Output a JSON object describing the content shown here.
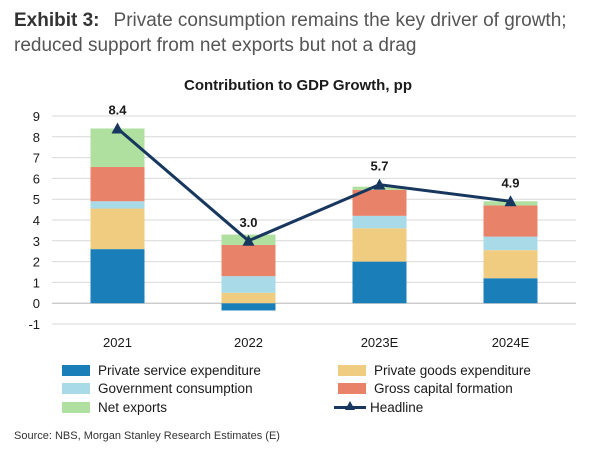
{
  "exhibit": {
    "label": "Exhibit 3:",
    "title": "Private consumption remains the key driver of growth; reduced support from net exports but not a drag"
  },
  "chart_data": {
    "type": "bar",
    "stacked": true,
    "title": "Contribution to GDP Growth, pp",
    "categories": [
      "2021",
      "2022",
      "2023E",
      "2024E"
    ],
    "ylim": [
      -1,
      9
    ],
    "yticks": [
      -1,
      0,
      1,
      2,
      3,
      4,
      5,
      6,
      7,
      8,
      9
    ],
    "grid": true,
    "series": [
      {
        "name": "Private service expenditure",
        "color": "#1a7fb8",
        "values": [
          2.6,
          -0.35,
          2.0,
          1.2
        ]
      },
      {
        "name": "Private goods expenditure",
        "color": "#f0cc80",
        "values": [
          1.95,
          0.5,
          1.6,
          1.35
        ]
      },
      {
        "name": "Government consumption",
        "color": "#a8dae8",
        "values": [
          0.35,
          0.8,
          0.6,
          0.65
        ]
      },
      {
        "name": "Gross capital formation",
        "color": "#e8836a",
        "values": [
          1.65,
          1.5,
          1.25,
          1.5
        ]
      },
      {
        "name": "Net exports",
        "color": "#b0e0a0",
        "values": [
          1.85,
          0.5,
          0.15,
          0.2
        ]
      }
    ],
    "line": {
      "name": "Headline",
      "color": "#17375e",
      "values": [
        8.4,
        3.0,
        5.7,
        4.9
      ],
      "labels": [
        "8.4",
        "3.0",
        "5.7",
        "4.9"
      ]
    },
    "legend_position": "bottom"
  },
  "source": "Source: NBS, Morgan Stanley Research Estimates (E)"
}
